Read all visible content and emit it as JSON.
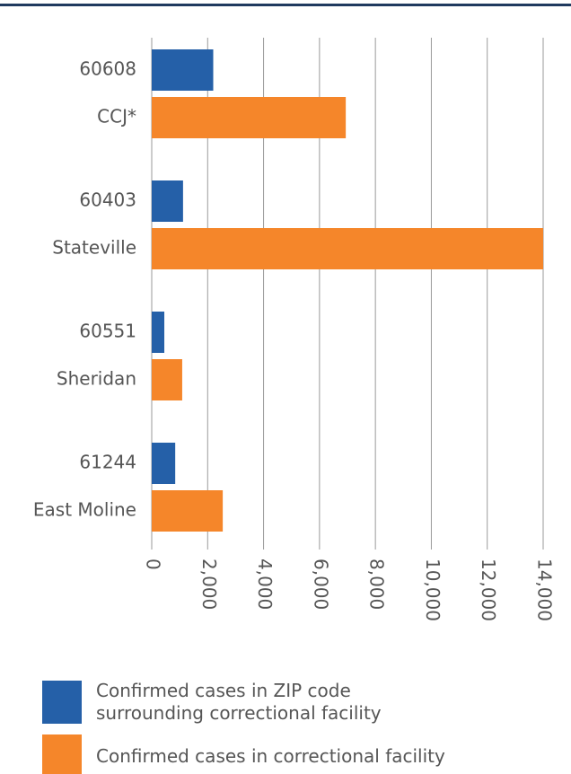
{
  "chart_data": {
    "type": "bar",
    "orientation": "horizontal",
    "series": [
      {
        "name": "Confirmed cases in ZIP code surrounding correctional facility",
        "color": "#2560a8",
        "labels": [
          "60608",
          "60403",
          "60551",
          "61244"
        ],
        "values": [
          2200,
          1120,
          450,
          840
        ]
      },
      {
        "name": "Confirmed cases in correctional facility",
        "color": "#f5862a",
        "labels": [
          "CCJ*",
          "Stateville",
          "Sheridan",
          "East Moline"
        ],
        "values": [
          6940,
          14000,
          1090,
          2540
        ]
      }
    ],
    "xlim": [
      0,
      14000
    ],
    "xticks": [
      0,
      {
        "value": 2000,
        "label": "2,000"
      },
      {
        "value": 4000,
        "label": "4,000"
      },
      {
        "value": 6000,
        "label": "6,000"
      },
      {
        "value": 8000,
        "label": "8,000"
      },
      {
        "value": 10000,
        "label": "10,000"
      },
      {
        "value": 12000,
        "label": "12,000"
      },
      {
        "value": 14000,
        "label": "14,000"
      }
    ],
    "grid": true
  }
}
